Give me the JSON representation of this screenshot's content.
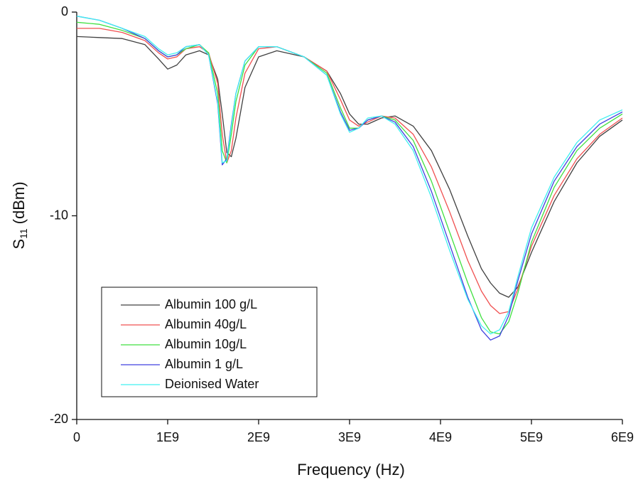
{
  "chart_data": {
    "type": "line",
    "x_label": "Frequency (Hz)",
    "y_label": "S",
    "y_label_subscript": "11",
    "y_label_suffix": "(dBm)",
    "x": [
      0,
      250000000,
      500000000,
      750000000,
      900000000,
      1000000000,
      1100000000,
      1200000000,
      1350000000,
      1450000000,
      1550000000,
      1600000000,
      1650000000,
      1700000000,
      1750000000,
      1850000000,
      2000000000,
      2200000000,
      2500000000,
      2750000000,
      2900000000,
      3000000000,
      3100000000,
      3200000000,
      3350000000,
      3500000000,
      3700000000,
      3900000000,
      4100000000,
      4300000000,
      4450000000,
      4550000000,
      4650000000,
      4750000000,
      4850000000,
      5000000000,
      5250000000,
      5500000000,
      5750000000,
      6000000000
    ],
    "series": [
      {
        "name": "Albumin 100 g/L",
        "color": "#404040",
        "values": [
          -1.2,
          -1.25,
          -1.3,
          -1.6,
          -2.3,
          -2.8,
          -2.6,
          -2.1,
          -1.9,
          -2.1,
          -3.3,
          -5.0,
          -6.9,
          -7.1,
          -6.2,
          -3.7,
          -2.2,
          -1.9,
          -2.2,
          -2.9,
          -4.0,
          -5.0,
          -5.5,
          -5.5,
          -5.2,
          -5.1,
          -5.6,
          -6.8,
          -8.7,
          -11.0,
          -12.6,
          -13.3,
          -13.8,
          -14.0,
          -13.5,
          -11.8,
          -9.3,
          -7.4,
          -6.1,
          -5.3
        ]
      },
      {
        "name": "Albumin 40g/L",
        "color": "#f05050",
        "values": [
          -0.8,
          -0.8,
          -1.0,
          -1.4,
          -2.0,
          -2.3,
          -2.2,
          -1.8,
          -1.7,
          -2.0,
          -3.5,
          -6.0,
          -7.4,
          -6.8,
          -5.2,
          -3.0,
          -1.8,
          -1.7,
          -2.2,
          -2.9,
          -4.3,
          -5.3,
          -5.6,
          -5.4,
          -5.1,
          -5.2,
          -6.0,
          -7.6,
          -9.8,
          -12.2,
          -13.7,
          -14.4,
          -14.8,
          -14.7,
          -13.6,
          -11.5,
          -9.0,
          -7.2,
          -6.0,
          -5.2
        ]
      },
      {
        "name": "Albumin 10g/L",
        "color": "#40e040",
        "values": [
          -0.5,
          -0.6,
          -0.9,
          -1.3,
          -1.9,
          -2.2,
          -2.1,
          -1.8,
          -1.6,
          -2.0,
          -4.0,
          -6.8,
          -7.4,
          -6.0,
          -4.4,
          -2.6,
          -1.7,
          -1.7,
          -2.2,
          -3.0,
          -4.7,
          -5.7,
          -5.7,
          -5.3,
          -5.1,
          -5.3,
          -6.3,
          -8.3,
          -10.8,
          -13.3,
          -15.0,
          -15.7,
          -15.8,
          -15.2,
          -13.8,
          -11.3,
          -8.6,
          -6.8,
          -5.7,
          -5.0
        ]
      },
      {
        "name": "Albumin 1 g/L",
        "color": "#4040e0",
        "values": [
          -0.2,
          -0.4,
          -0.8,
          -1.3,
          -1.9,
          -2.2,
          -2.1,
          -1.7,
          -1.6,
          -2.1,
          -4.5,
          -7.5,
          -7.2,
          -5.5,
          -4.0,
          -2.4,
          -1.7,
          -1.7,
          -2.2,
          -3.1,
          -4.9,
          -5.8,
          -5.7,
          -5.3,
          -5.1,
          -5.4,
          -6.6,
          -8.8,
          -11.4,
          -14.0,
          -15.6,
          -16.1,
          -15.9,
          -14.9,
          -13.2,
          -10.9,
          -8.3,
          -6.6,
          -5.5,
          -4.9
        ]
      },
      {
        "name": "Deionised Water",
        "color": "#40f0f0",
        "values": [
          -0.2,
          -0.4,
          -0.8,
          -1.2,
          -1.8,
          -2.1,
          -2.0,
          -1.7,
          -1.6,
          -2.1,
          -4.4,
          -7.4,
          -7.3,
          -5.6,
          -4.0,
          -2.4,
          -1.7,
          -1.7,
          -2.2,
          -3.1,
          -5.0,
          -5.9,
          -5.7,
          -5.2,
          -5.1,
          -5.5,
          -6.8,
          -9.1,
          -11.7,
          -14.1,
          -15.4,
          -15.8,
          -15.6,
          -14.7,
          -13.0,
          -10.6,
          -8.1,
          -6.4,
          -5.3,
          -4.8
        ]
      }
    ],
    "xlim": [
      0,
      6000000000
    ],
    "xticks": [
      0,
      {
        "value": 1000000000,
        "label": "1E9"
      },
      {
        "value": 2000000000,
        "label": "2E9"
      },
      {
        "value": 3000000000,
        "label": "3E9"
      },
      {
        "value": 4000000000,
        "label": "4E9"
      },
      {
        "value": 5000000000,
        "label": "5E9"
      },
      {
        "value": 6000000000,
        "label": "6E9"
      }
    ],
    "ylim": [
      -20,
      0
    ],
    "yticks": [
      0,
      -10,
      -20
    ],
    "grid": false,
    "legend": "lower left"
  }
}
